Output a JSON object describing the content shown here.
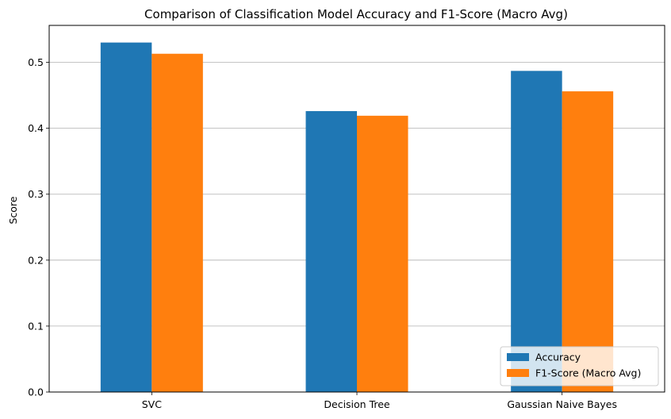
{
  "chart_data": {
    "type": "bar",
    "title": "Comparison of Classification Model Accuracy and F1-Score (Macro Avg)",
    "xlabel": "",
    "ylabel": "Score",
    "categories": [
      "SVC",
      "Decision Tree",
      "Gaussian Naive Bayes"
    ],
    "series": [
      {
        "name": "Accuracy",
        "color": "#1f77b4",
        "values": [
          0.53,
          0.426,
          0.487
        ]
      },
      {
        "name": "F1-Score (Macro Avg)",
        "color": "#ff7f0e",
        "values": [
          0.513,
          0.419,
          0.456
        ]
      }
    ],
    "ylim": [
      0,
      0.556
    ],
    "yticks": [
      0.0,
      0.1,
      0.2,
      0.3,
      0.4,
      0.5
    ],
    "ytick_labels": [
      "0.0",
      "0.1",
      "0.2",
      "0.3",
      "0.4",
      "0.5"
    ],
    "grid": "y",
    "legend_position": "lower-right"
  }
}
